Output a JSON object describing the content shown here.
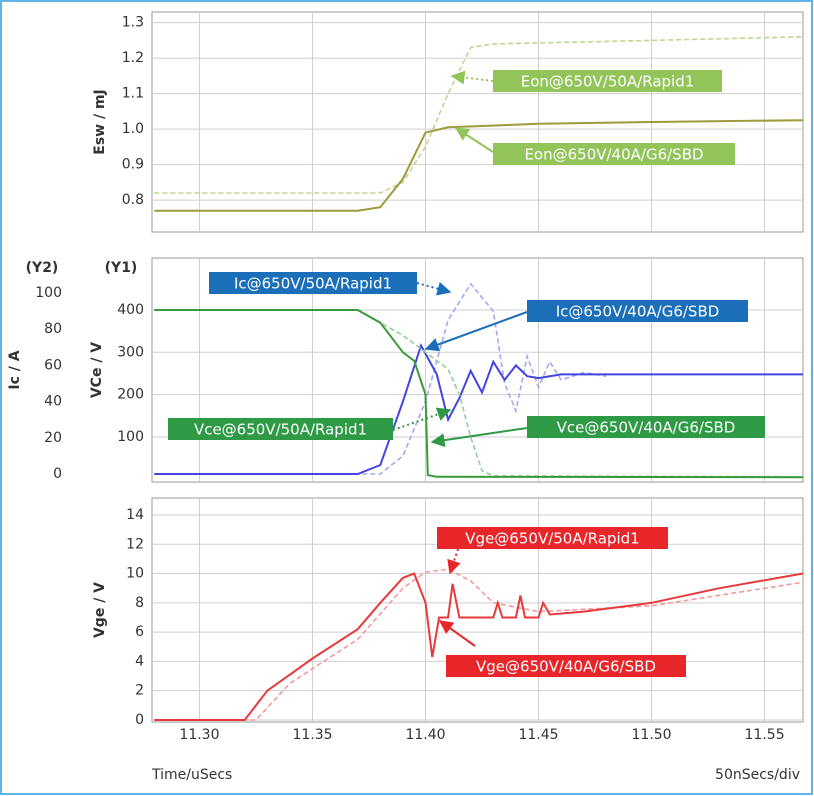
{
  "chart_data": [
    {
      "type": "line",
      "ylabel": "Esw / mJ",
      "ylim": [
        0.71,
        1.33
      ],
      "yticks": [
        0.8,
        0.9,
        {
          "value": 1,
          "label": "1.0"
        },
        1.1,
        1.2,
        1.3
      ],
      "series": [
        {
          "name": "Eon@650V/50A/Rapid1",
          "color": "#b9d88f",
          "label_color": "#92c45a",
          "dash": true,
          "x": [
            11.28,
            11.38,
            11.39,
            11.4,
            11.41,
            11.42,
            11.43,
            11.5,
            11.567
          ],
          "values": [
            0.82,
            0.82,
            0.85,
            0.95,
            1.1,
            1.23,
            1.24,
            1.25,
            1.26
          ]
        },
        {
          "name": "Eon@650V/40A/G6/SBD",
          "color": "#9f9b3b",
          "label_color": "#92c45a",
          "dash": false,
          "x": [
            11.28,
            11.37,
            11.38,
            11.39,
            11.4,
            11.41,
            11.45,
            11.5,
            11.567
          ],
          "values": [
            0.77,
            0.77,
            0.78,
            0.86,
            0.99,
            1.005,
            1.015,
            1.02,
            1.025
          ]
        }
      ]
    },
    {
      "type": "line",
      "ylabel": "VCe / V",
      "y2label": "Ic / A",
      "y_tag": "(Y1)",
      "y2_tag": "(Y2)",
      "ylim": [
        -6.4,
        522.8
      ],
      "yticks": [
        100,
        200,
        300,
        400
      ],
      "y2lim": [
        -4.4,
        119.3
      ],
      "y2ticks": [
        0,
        20,
        40,
        60,
        80,
        100
      ],
      "series": [
        {
          "name": "Ic@650V/50A/Rapid1",
          "color": "#a3a8f2",
          "label_color": "#1a6fb8",
          "dash": true,
          "axis": "y2",
          "x": [
            11.28,
            11.38,
            11.39,
            11.4,
            11.41,
            11.42,
            11.43,
            11.435,
            11.44,
            11.445,
            11.45,
            11.455,
            11.46,
            11.47,
            11.48
          ],
          "values": [
            0,
            0,
            10,
            40,
            85,
            105,
            90,
            50,
            35,
            65,
            48,
            62,
            52,
            56,
            54
          ]
        },
        {
          "name": "Ic@650V/40A/G6/SBD",
          "color": "#4444e0",
          "label_color": "#1a6fb8",
          "dash": false,
          "axis": "y2",
          "x": [
            11.28,
            11.37,
            11.38,
            11.39,
            11.398,
            11.405,
            11.41,
            11.415,
            11.42,
            11.425,
            11.43,
            11.435,
            11.44,
            11.445,
            11.45,
            11.46,
            11.567
          ],
          "values": [
            0,
            0,
            5,
            40,
            71,
            55,
            30,
            42,
            57,
            45,
            62,
            52,
            60,
            54,
            53,
            55,
            55
          ]
        },
        {
          "name": "Vce@650V/50A/Rapid1",
          "color": "#93cf95",
          "label_color": "#2e9a46",
          "dash": true,
          "x": [
            11.28,
            11.37,
            11.39,
            11.41,
            11.415,
            11.42,
            11.425,
            11.43,
            11.567
          ],
          "values": [
            400,
            400,
            340,
            260,
            200,
            100,
            20,
            8,
            6
          ]
        },
        {
          "name": "Vce@650V/40A/G6/SBD",
          "color": "#3a9a3a",
          "label_color": "#2e9a46",
          "dash": false,
          "x": [
            11.28,
            11.37,
            11.38,
            11.39,
            11.395,
            11.4,
            11.401,
            11.405,
            11.567
          ],
          "values": [
            400,
            400,
            370,
            300,
            280,
            200,
            10,
            6,
            5
          ]
        }
      ]
    },
    {
      "type": "line",
      "ylabel": "Vge / V",
      "xlabel": "Time/uSecs",
      "x_scale": "50nSecs/div",
      "xlim": [
        11.279,
        11.567
      ],
      "xticks": [
        {
          "value": 11.3,
          "label": "11.30"
        },
        11.35,
        {
          "value": 11.4,
          "label": "11.40"
        },
        11.45,
        {
          "value": 11.5,
          "label": "11.50"
        },
        11.55
      ],
      "ylim": [
        -0.14,
        15.16
      ],
      "yticks": [
        0,
        2,
        4,
        6,
        8,
        10,
        12,
        14
      ],
      "series": [
        {
          "name": "Vge@650V/50A/Rapid1",
          "color": "#f29a9a",
          "label_color": "#e8262a",
          "dash": true,
          "x": [
            11.28,
            11.325,
            11.34,
            11.37,
            11.39,
            11.4,
            11.41,
            11.42,
            11.43,
            11.45,
            11.5,
            11.567
          ],
          "values": [
            0,
            0,
            2.5,
            5.5,
            9,
            10.1,
            10.3,
            9.5,
            8,
            7.4,
            7.8,
            9.4
          ]
        },
        {
          "name": "Vge@650V/40A/G6/SBD",
          "color": "#e83a3a",
          "label_color": "#e8262a",
          "dash": false,
          "x": [
            11.28,
            11.32,
            11.33,
            11.35,
            11.37,
            11.38,
            11.39,
            11.395,
            11.4,
            11.403,
            11.406,
            11.41,
            11.412,
            11.415,
            11.43,
            11.432,
            11.434,
            11.44,
            11.442,
            11.444,
            11.45,
            11.452,
            11.455,
            11.47,
            11.5,
            11.53,
            11.567
          ],
          "values": [
            0,
            0,
            2,
            4.2,
            6.2,
            8,
            9.7,
            10,
            8,
            4.3,
            7,
            7,
            9.3,
            7,
            7,
            8,
            7,
            7,
            8.5,
            7,
            7,
            8,
            7.2,
            7.4,
            8,
            9,
            10
          ]
        }
      ]
    }
  ]
}
